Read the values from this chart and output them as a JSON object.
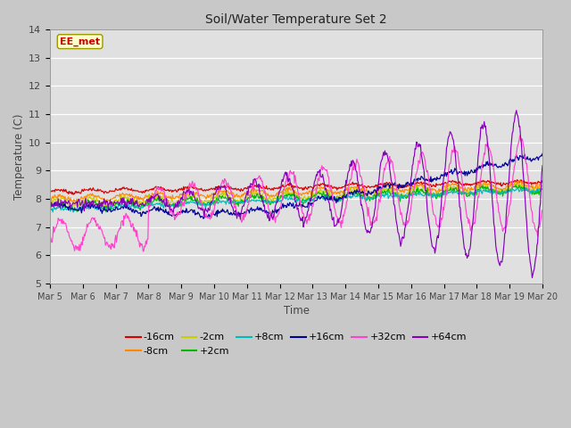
{
  "title": "Soil/Water Temperature Set 2",
  "xlabel": "Time",
  "ylabel": "Temperature (C)",
  "ylim": [
    5.0,
    14.0
  ],
  "yticks": [
    5.0,
    6.0,
    7.0,
    8.0,
    9.0,
    10.0,
    11.0,
    12.0,
    13.0,
    14.0
  ],
  "fig_bg_color": "#c8c8c8",
  "plot_bg_color": "#e0e0e0",
  "watermark": "EE_met",
  "series": [
    {
      "label": "-16cm",
      "color": "#dd0000"
    },
    {
      "label": "-8cm",
      "color": "#ff8800"
    },
    {
      "label": "-2cm",
      "color": "#cccc00"
    },
    {
      "label": "+2cm",
      "color": "#00bb00"
    },
    {
      "label": "+8cm",
      "color": "#00bbbb"
    },
    {
      "label": "+16cm",
      "color": "#000099"
    },
    {
      "label": "+32cm",
      "color": "#ff44cc"
    },
    {
      "label": "+64cm",
      "color": "#8800bb"
    }
  ],
  "n_days": 15,
  "pts_per_day": 48,
  "start_day": 5
}
